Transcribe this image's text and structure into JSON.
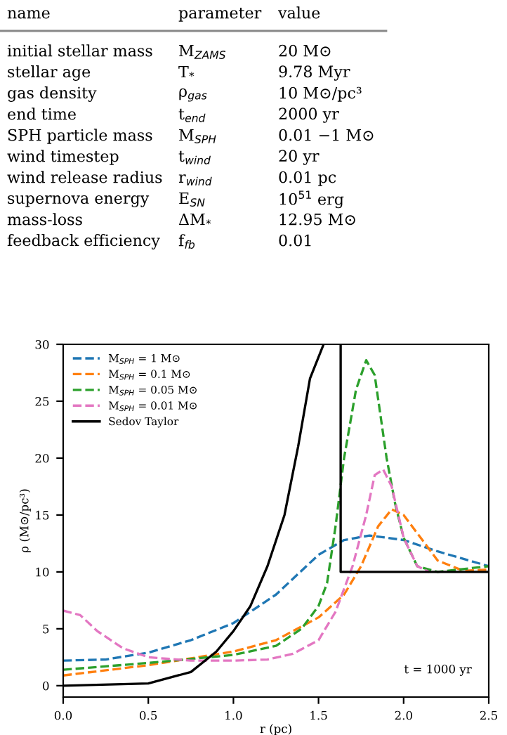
{
  "chart_data": [
    {
      "type": "other",
      "annotations": [
        "name",
        "parameter",
        "value",
        "initial stellar mass",
        "M$_{ZAMS}$",
        "20 M⊙",
        "stellar age",
        "T$_{*}$",
        "9.78 Myr",
        "gas density",
        "ρ$_{gas}$",
        "10 M⊙/pc³",
        "end time",
        "t$_{end}$",
        "2000 yr",
        "SPH particle mass",
        "M$_{SPH}$",
        "0.01 −1 M⊙",
        "wind timestep",
        "t$_{wind}$",
        "20 yr",
        "wind release radius",
        "r$_{wind}$",
        "0.01 pc",
        "supernova energy",
        "E$_{SN}$",
        "10$^{51}$ erg",
        "mass-loss",
        "ΔM$_{*}$",
        "12.95 M⊙",
        "feedback efficiency",
        "f$_{fb}$",
        "0.01"
      ]
    },
    {
      "type": "line",
      "xlabel": "r (pc)",
      "ylabel": "ρ (M⊙/pc³)",
      "xlim": [
        0.0,
        2.5
      ],
      "ylim": [
        -1,
        30
      ],
      "xticks": [
        {
          "value": 0,
          "label": "0.0"
        },
        0.5,
        {
          "value": 1,
          "label": "1.0"
        },
        1.5,
        {
          "value": 2,
          "label": "2.0"
        },
        2.5
      ],
      "yticks": [
        0,
        5,
        10,
        15,
        20,
        25,
        30
      ],
      "grid": false,
      "legend": "top left",
      "line_style": "dashed",
      "annotations": [
        "t = 1000 yr"
      ],
      "series": [
        {
          "name": "M$_{SPH}$ = 1 M⊙",
          "color": "#1f77b4",
          "x": [
            0,
            0.25,
            0.5,
            0.75,
            1.0,
            1.25,
            1.5,
            1.65,
            1.8,
            2.0,
            2.2,
            2.5
          ],
          "values": [
            2.2,
            2.3,
            2.9,
            4.0,
            5.5,
            8,
            11.5,
            12.8,
            13.2,
            12.8,
            11.8,
            10.5
          ]
        },
        {
          "name": "M$_{SPH}$ = 0.1 M⊙",
          "color": "#ff7f0e",
          "x": [
            0,
            0.5,
            1.0,
            1.25,
            1.5,
            1.65,
            1.75,
            1.85,
            1.93,
            2.0,
            2.1,
            2.2,
            2.35,
            2.5
          ],
          "values": [
            0.9,
            1.8,
            3.0,
            4.0,
            6.0,
            8.0,
            10.5,
            14,
            15.5,
            15.0,
            13.0,
            11,
            10.1,
            10.2
          ]
        },
        {
          "name": "M$_{SPH}$ = 0.05 M⊙",
          "color": "#2ca02c",
          "x": [
            0,
            0.5,
            1.0,
            1.25,
            1.4,
            1.5,
            1.55,
            1.6,
            1.65,
            1.72,
            1.78,
            1.83,
            1.9,
            1.95,
            2.0,
            2.08,
            2.2,
            2.5
          ],
          "values": [
            1.4,
            2.0,
            2.7,
            3.5,
            5,
            7,
            9,
            14,
            20,
            26,
            28.6,
            27.3,
            20,
            16,
            13,
            10.5,
            10,
            10.5
          ]
        },
        {
          "name": "M$_{SPH}$ = 0.01 M⊙",
          "color": "#e377c2",
          "x": [
            0,
            0.1,
            0.2,
            0.35,
            0.5,
            0.75,
            1.0,
            1.2,
            1.35,
            1.5,
            1.6,
            1.7,
            1.78,
            1.83,
            1.88,
            1.93,
            2.0,
            2.08,
            2.15
          ],
          "values": [
            6.6,
            6.2,
            4.8,
            3.3,
            2.5,
            2.2,
            2.2,
            2.3,
            2.8,
            4,
            6.5,
            10.5,
            15,
            18.5,
            19.0,
            17.5,
            13,
            10.5,
            10
          ]
        },
        {
          "name": "Sedov Taylor",
          "color": "#000000",
          "line_style": "solid",
          "x": [
            0,
            0.5,
            0.75,
            0.9,
            1.0,
            1.1,
            1.2,
            1.3,
            1.38,
            1.45,
            1.53,
            1.58,
            1.63,
            1.63,
            2.5
          ],
          "values": [
            0,
            0.2,
            1.2,
            3,
            4.8,
            7,
            10.5,
            15,
            21,
            27,
            30,
            null,
            30,
            10,
            10
          ]
        }
      ]
    }
  ]
}
